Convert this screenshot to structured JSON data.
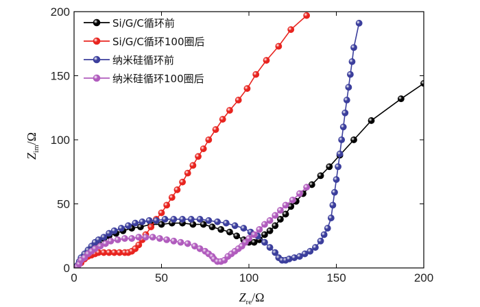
{
  "chart_data": {
    "type": "scatter",
    "title": "",
    "xlabel": {
      "symbol": "Z",
      "sub": "re",
      "unit": "/Ω"
    },
    "ylabel": {
      "symbol": "Z",
      "sub": "im",
      "unit": "/Ω"
    },
    "xlim": [
      0,
      200
    ],
    "ylim": [
      0,
      200
    ],
    "xticks": [
      "0",
      "50",
      "100",
      "150",
      "200"
    ],
    "yticks": [
      "0",
      "50",
      "100",
      "150",
      "200"
    ],
    "grid": false,
    "legend_position": "top-left",
    "series": [
      {
        "name": "Si/G/C循环前",
        "color": "#000000",
        "points": [
          [
            2,
            2
          ],
          [
            4,
            6
          ],
          [
            6,
            10
          ],
          [
            8,
            13
          ],
          [
            11,
            17
          ],
          [
            14,
            20
          ],
          [
            17,
            23
          ],
          [
            20,
            25
          ],
          [
            24,
            27
          ],
          [
            28,
            29
          ],
          [
            33,
            31
          ],
          [
            38,
            32
          ],
          [
            44,
            34
          ],
          [
            50,
            34
          ],
          [
            56,
            35
          ],
          [
            62,
            35
          ],
          [
            68,
            34
          ],
          [
            74,
            34
          ],
          [
            79,
            32
          ],
          [
            84,
            30
          ],
          [
            89,
            28
          ],
          [
            93,
            25
          ],
          [
            97,
            22
          ],
          [
            100,
            20
          ],
          [
            103,
            20
          ],
          [
            106,
            22
          ],
          [
            109,
            26
          ],
          [
            112,
            29
          ],
          [
            115,
            33
          ],
          [
            118,
            38
          ],
          [
            121,
            42
          ],
          [
            124,
            48
          ],
          [
            127,
            52
          ],
          [
            131,
            58
          ],
          [
            136,
            65
          ],
          [
            141,
            72
          ],
          [
            146,
            79
          ],
          [
            152,
            88
          ],
          [
            160,
            100
          ],
          [
            170,
            115
          ],
          [
            187,
            132
          ],
          [
            200,
            144
          ]
        ]
      },
      {
        "name": "Si/G/C循环100圈后",
        "color": "#e8241f",
        "points": [
          [
            2,
            1
          ],
          [
            4,
            4
          ],
          [
            6,
            7
          ],
          [
            8,
            9
          ],
          [
            10,
            10
          ],
          [
            12,
            11
          ],
          [
            14,
            12
          ],
          [
            17,
            12
          ],
          [
            20,
            12
          ],
          [
            23,
            12
          ],
          [
            26,
            12
          ],
          [
            29,
            12
          ],
          [
            31,
            12
          ],
          [
            33,
            13
          ],
          [
            35,
            15
          ],
          [
            37,
            18
          ],
          [
            39,
            22
          ],
          [
            41,
            26
          ],
          [
            44,
            32
          ],
          [
            47,
            38
          ],
          [
            50,
            43
          ],
          [
            53,
            49
          ],
          [
            56,
            55
          ],
          [
            59,
            61
          ],
          [
            62,
            67
          ],
          [
            65,
            74
          ],
          [
            68,
            80
          ],
          [
            71,
            87
          ],
          [
            74,
            93
          ],
          [
            77,
            100
          ],
          [
            81,
            108
          ],
          [
            85,
            116
          ],
          [
            89,
            123
          ],
          [
            94,
            131
          ],
          [
            99,
            140
          ],
          [
            104,
            151
          ],
          [
            110,
            162
          ],
          [
            117,
            173
          ],
          [
            124,
            186
          ],
          [
            133,
            197
          ]
        ]
      },
      {
        "name": "纳米硅循环前",
        "color": "#3b3e9c",
        "points": [
          [
            2,
            2
          ],
          [
            3,
            5
          ],
          [
            4,
            8
          ],
          [
            6,
            11
          ],
          [
            8,
            14
          ],
          [
            10,
            17
          ],
          [
            12,
            20
          ],
          [
            14,
            22
          ],
          [
            17,
            24
          ],
          [
            20,
            27
          ],
          [
            23,
            29
          ],
          [
            27,
            31
          ],
          [
            31,
            33
          ],
          [
            35,
            35
          ],
          [
            39,
            36
          ],
          [
            43,
            37
          ],
          [
            47,
            37
          ],
          [
            52,
            38
          ],
          [
            57,
            38
          ],
          [
            62,
            38
          ],
          [
            67,
            38
          ],
          [
            72,
            38
          ],
          [
            77,
            37
          ],
          [
            82,
            36
          ],
          [
            87,
            35
          ],
          [
            92,
            33
          ],
          [
            97,
            31
          ],
          [
            101,
            28
          ],
          [
            105,
            25
          ],
          [
            109,
            20
          ],
          [
            112,
            16
          ],
          [
            115,
            12
          ],
          [
            117,
            8
          ],
          [
            119,
            6
          ],
          [
            121,
            6
          ],
          [
            123,
            7
          ],
          [
            126,
            8
          ],
          [
            129,
            9
          ],
          [
            132,
            11
          ],
          [
            135,
            13
          ],
          [
            138,
            16
          ],
          [
            141,
            21
          ],
          [
            143,
            26
          ],
          [
            145,
            31
          ],
          [
            147,
            39
          ],
          [
            148,
            49
          ],
          [
            149,
            59
          ],
          [
            150,
            69
          ],
          [
            151,
            79
          ],
          [
            152,
            89
          ],
          [
            153,
            100
          ],
          [
            154,
            110
          ],
          [
            155,
            121
          ],
          [
            156,
            131
          ],
          [
            157,
            141
          ],
          [
            158,
            151
          ],
          [
            159,
            161
          ],
          [
            160,
            172
          ],
          [
            163,
            191
          ]
        ]
      },
      {
        "name": "纳米硅循环100圈后",
        "color": "#b05bbd",
        "points": [
          [
            2,
            1
          ],
          [
            3,
            3
          ],
          [
            4,
            6
          ],
          [
            6,
            8
          ],
          [
            8,
            11
          ],
          [
            10,
            13
          ],
          [
            12,
            15
          ],
          [
            15,
            17
          ],
          [
            18,
            19
          ],
          [
            21,
            21
          ],
          [
            25,
            22
          ],
          [
            29,
            23
          ],
          [
            33,
            23
          ],
          [
            37,
            24
          ],
          [
            41,
            24
          ],
          [
            45,
            24
          ],
          [
            49,
            23
          ],
          [
            53,
            22
          ],
          [
            57,
            21
          ],
          [
            61,
            20
          ],
          [
            65,
            19
          ],
          [
            69,
            17
          ],
          [
            72,
            15
          ],
          [
            75,
            13
          ],
          [
            77,
            11
          ],
          [
            79,
            9
          ],
          [
            80,
            7
          ],
          [
            82,
            5
          ],
          [
            84,
            5
          ],
          [
            86,
            6
          ],
          [
            88,
            9
          ],
          [
            90,
            11
          ],
          [
            92,
            13
          ],
          [
            94,
            15
          ],
          [
            96,
            17
          ],
          [
            98,
            20
          ],
          [
            100,
            23
          ],
          [
            103,
            26
          ],
          [
            106,
            30
          ],
          [
            109,
            34
          ],
          [
            112,
            37
          ],
          [
            115,
            41
          ],
          [
            118,
            45
          ],
          [
            121,
            49
          ],
          [
            125,
            53
          ],
          [
            129,
            58
          ],
          [
            133,
            63
          ]
        ]
      }
    ]
  }
}
